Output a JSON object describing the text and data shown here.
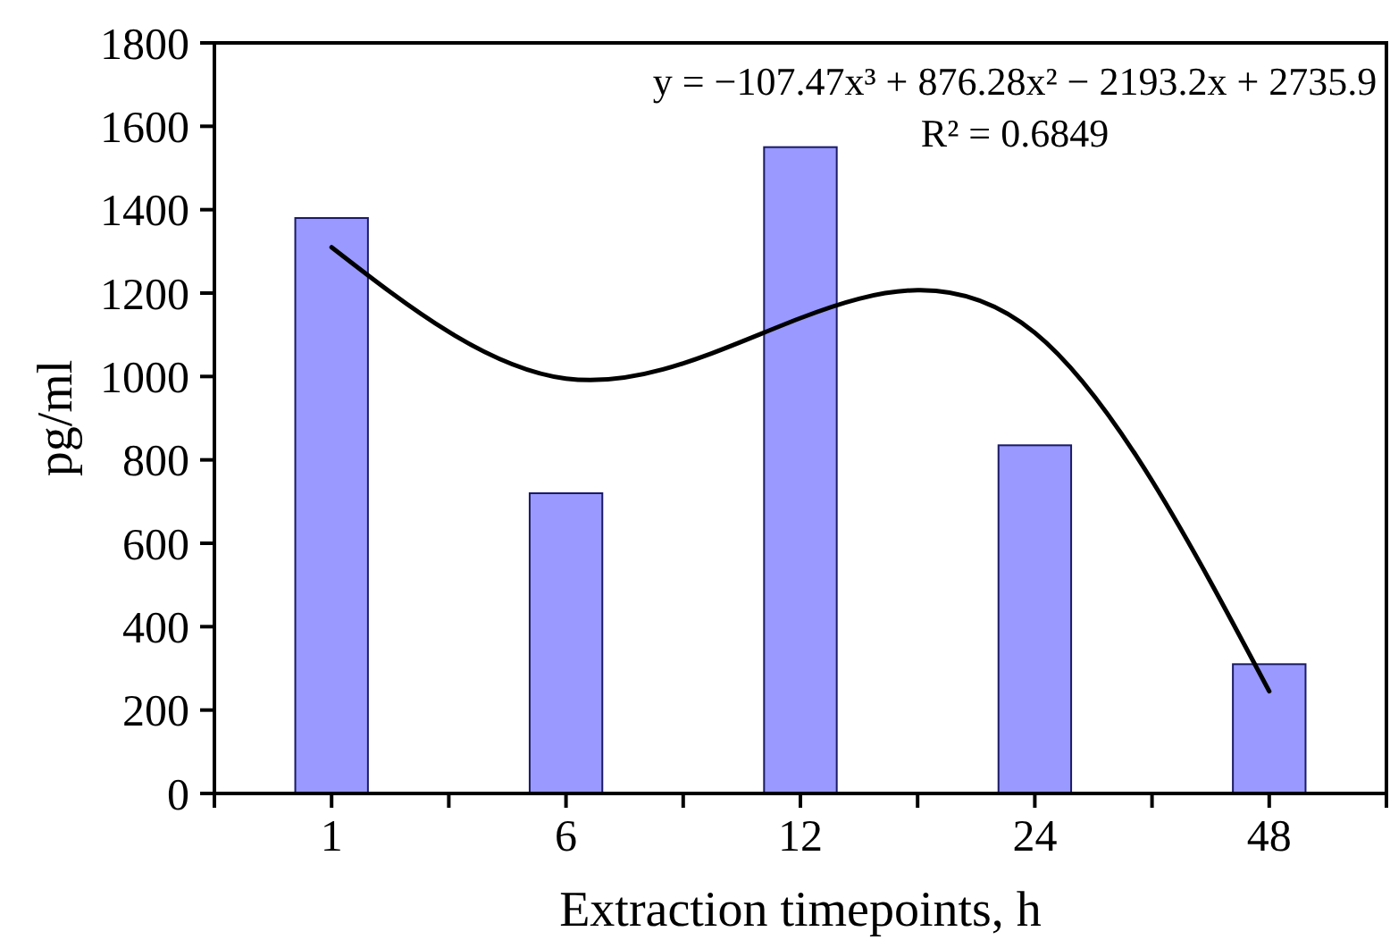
{
  "chart_data": {
    "type": "bar",
    "xlabel": "Extraction timepoints, h",
    "ylabel": "pg/ml",
    "annotations": [
      "y = −107.47x³ + 876.28x² − 2193.2x + 2735.9",
      "R² = 0.6849"
    ],
    "categories": [
      "1",
      "6",
      "12",
      "24",
      "48"
    ],
    "ylim": [
      0,
      1800
    ],
    "yticks": [
      0,
      200,
      400,
      600,
      800,
      1000,
      1200,
      1400,
      1600,
      1800
    ],
    "series": [
      {
        "color": "#9999ff",
        "values": [
          1380,
          720,
          1550,
          835,
          310
        ]
      },
      {
        "type": "line",
        "color": "#000000",
        "values": [
          1310,
          995,
          1140,
          1105,
          245
        ]
      }
    ],
    "grid": false,
    "marker": "none",
    "line_style": "solid"
  }
}
